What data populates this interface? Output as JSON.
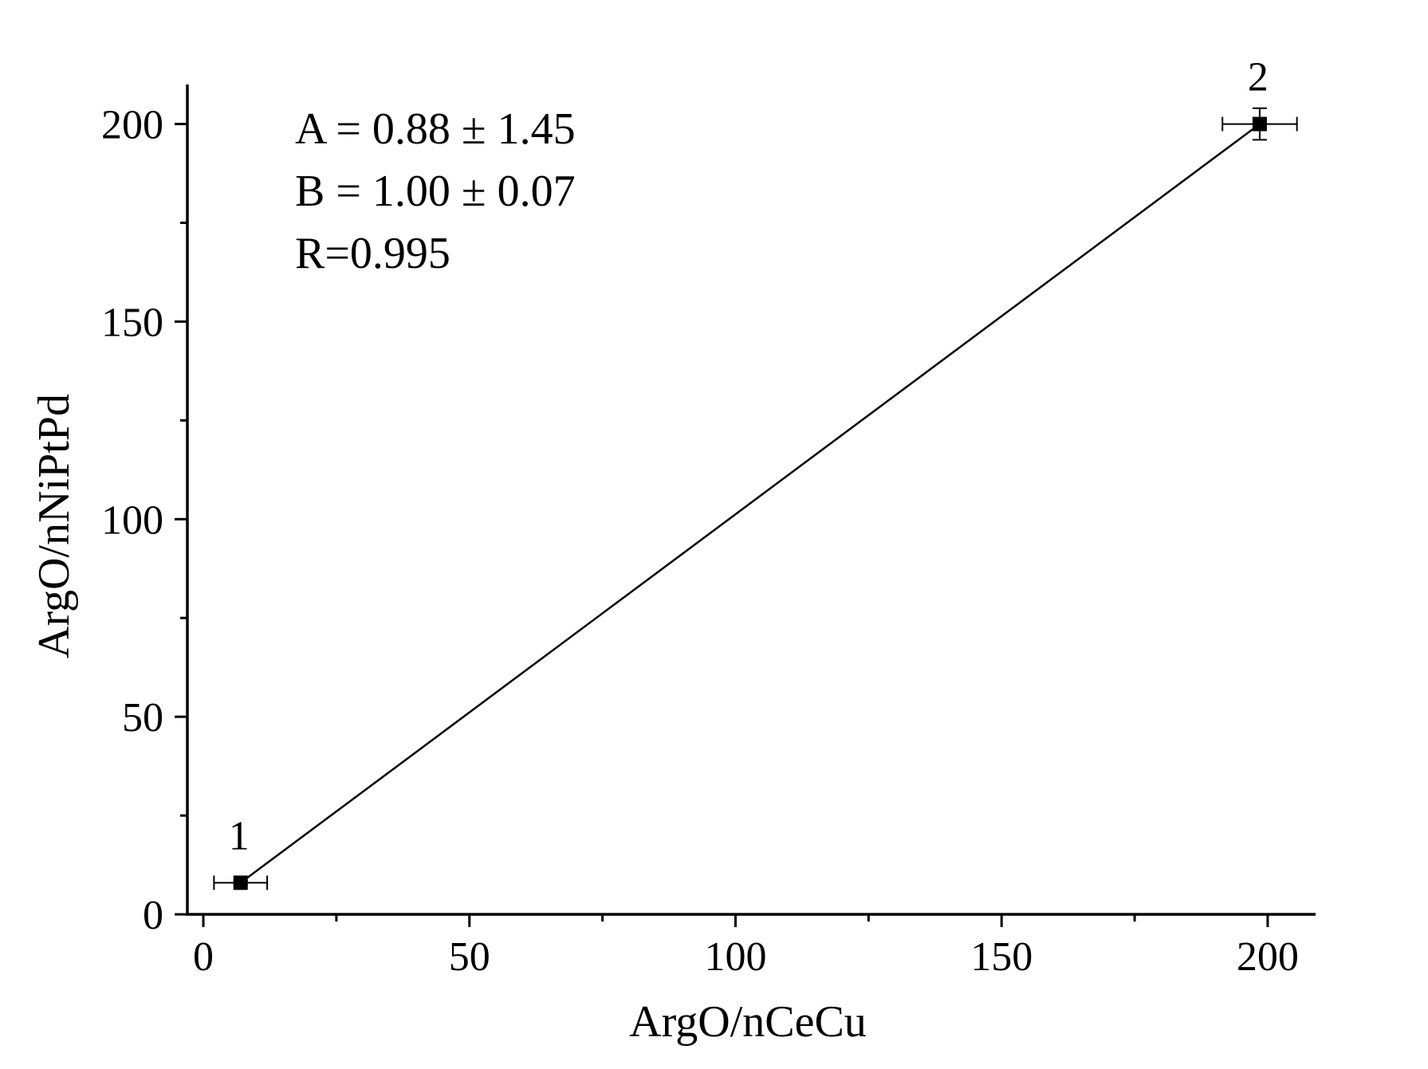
{
  "chart_data": {
    "type": "scatter",
    "title": "",
    "xlabel": "ArgO/nCeCu",
    "ylabel": "ArgO/nNiPtPd",
    "xlim": [
      -3,
      209
    ],
    "ylim": [
      0,
      210
    ],
    "xticks": [
      0,
      50,
      100,
      150,
      200
    ],
    "yticks": [
      0,
      50,
      100,
      150,
      200
    ],
    "x_minor_ticks": [
      25,
      75,
      125,
      175
    ],
    "y_minor_ticks": [
      25,
      75,
      125,
      175
    ],
    "grid": false,
    "points": [
      {
        "label": "1",
        "x": 7,
        "y": 8,
        "xerr": 5,
        "yerr": 0.5
      },
      {
        "label": "2",
        "x": 198.5,
        "y": 200,
        "xerr": 7,
        "yerr": 4
      }
    ],
    "fit_line": {
      "x": [
        7,
        198.5
      ],
      "y": [
        8,
        200
      ]
    },
    "annotations": {
      "a": "A = 0.88 ± 1.45",
      "b": "B = 1.00 ± 0.07",
      "r": "R=0.995"
    },
    "colors": {
      "marker": "#000000",
      "line": "#000000",
      "axes": "#000000"
    }
  }
}
